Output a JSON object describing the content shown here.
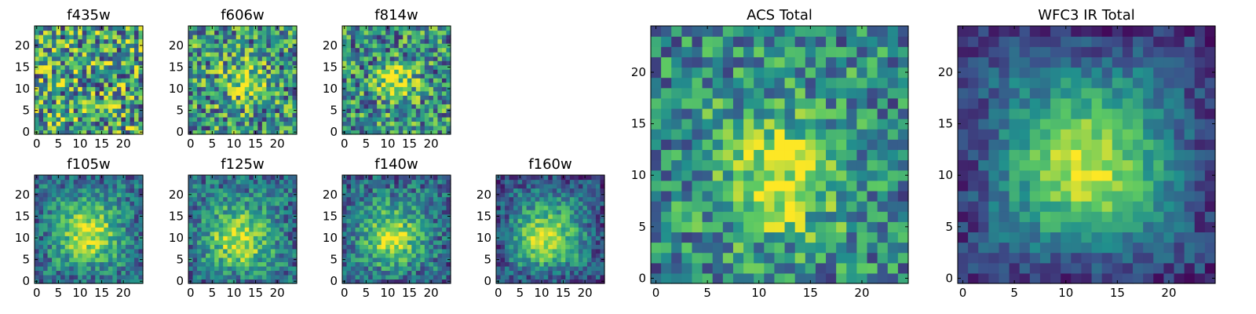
{
  "chart_data": {
    "type": "heatmap",
    "grid_size": 25,
    "colormap": [
      "#440154",
      "#3b528b",
      "#21908d",
      "#5dc963",
      "#fde725"
    ],
    "panels": [
      {
        "id": "f435w",
        "title": "f435w",
        "x_ticks": [
          "0",
          "5",
          "10",
          "15",
          "20"
        ],
        "y_ticks": [
          "0",
          "5",
          "10",
          "15",
          "20"
        ],
        "source": {
          "cx": 12,
          "cy": 11,
          "peak": 0.0,
          "sigma": 4.0,
          "noise": 0.45,
          "base": 0.58,
          "edge": 0.0
        }
      },
      {
        "id": "f606w",
        "title": "f606w",
        "x_ticks": [
          "0",
          "5",
          "10",
          "15",
          "20"
        ],
        "y_ticks": [
          "0",
          "5",
          "10",
          "15",
          "20"
        ],
        "source": {
          "cx": 12,
          "cy": 12,
          "peak": 0.32,
          "sigma": 3.5,
          "noise": 0.4,
          "base": 0.52,
          "edge": 0.0
        }
      },
      {
        "id": "f814w",
        "title": "f814w",
        "x_ticks": [
          "0",
          "5",
          "10",
          "15",
          "20"
        ],
        "y_ticks": [
          "0",
          "5",
          "10",
          "15",
          "20"
        ],
        "source": {
          "cx": 12,
          "cy": 11,
          "peak": 0.42,
          "sigma": 3.0,
          "noise": 0.38,
          "base": 0.5,
          "edge": 0.0
        }
      },
      {
        "id": "f105w",
        "title": "f105w",
        "x_ticks": [
          "0",
          "5",
          "10",
          "15",
          "20"
        ],
        "y_ticks": [
          "0",
          "5",
          "10",
          "15",
          "20"
        ],
        "source": {
          "cx": 12,
          "cy": 11,
          "peak": 0.5,
          "sigma": 4.5,
          "noise": 0.22,
          "base": 0.45,
          "edge": 0.12
        }
      },
      {
        "id": "f125w",
        "title": "f125w",
        "x_ticks": [
          "0",
          "5",
          "10",
          "15",
          "20"
        ],
        "y_ticks": [
          "0",
          "5",
          "10",
          "15",
          "20"
        ],
        "source": {
          "cx": 11,
          "cy": 10,
          "peak": 0.48,
          "sigma": 4.5,
          "noise": 0.24,
          "base": 0.46,
          "edge": 0.12
        }
      },
      {
        "id": "f140w",
        "title": "f140w",
        "x_ticks": [
          "0",
          "5",
          "10",
          "15",
          "20"
        ],
        "y_ticks": [
          "0",
          "5",
          "10",
          "15",
          "20"
        ],
        "source": {
          "cx": 11,
          "cy": 10,
          "peak": 0.48,
          "sigma": 4.0,
          "noise": 0.24,
          "base": 0.45,
          "edge": 0.14
        }
      },
      {
        "id": "f160w",
        "title": "f160w",
        "x_ticks": [
          "0",
          "5",
          "10",
          "15",
          "20"
        ],
        "y_ticks": [
          "0",
          "5",
          "10",
          "15",
          "20"
        ],
        "source": {
          "cx": 11,
          "cy": 10,
          "peak": 0.5,
          "sigma": 4.5,
          "noise": 0.2,
          "base": 0.42,
          "edge": 0.2
        }
      },
      {
        "id": "acs-total",
        "title": "ACS Total",
        "x_ticks": [
          "0",
          "5",
          "10",
          "15",
          "20"
        ],
        "y_ticks": [
          "0",
          "5",
          "10",
          "15",
          "20"
        ],
        "source": {
          "cx": 12,
          "cy": 10,
          "peak": 0.45,
          "sigma": 4.0,
          "noise": 0.3,
          "base": 0.5,
          "edge": 0.05
        }
      },
      {
        "id": "wfc3-ir-total",
        "title": "WFC3 IR Total",
        "x_ticks": [
          "0",
          "5",
          "10",
          "15",
          "20"
        ],
        "y_ticks": [
          "0",
          "5",
          "10",
          "15",
          "20"
        ],
        "source": {
          "cx": 12,
          "cy": 11,
          "peak": 0.55,
          "sigma": 4.5,
          "noise": 0.14,
          "base": 0.38,
          "edge": 0.22
        }
      }
    ]
  }
}
